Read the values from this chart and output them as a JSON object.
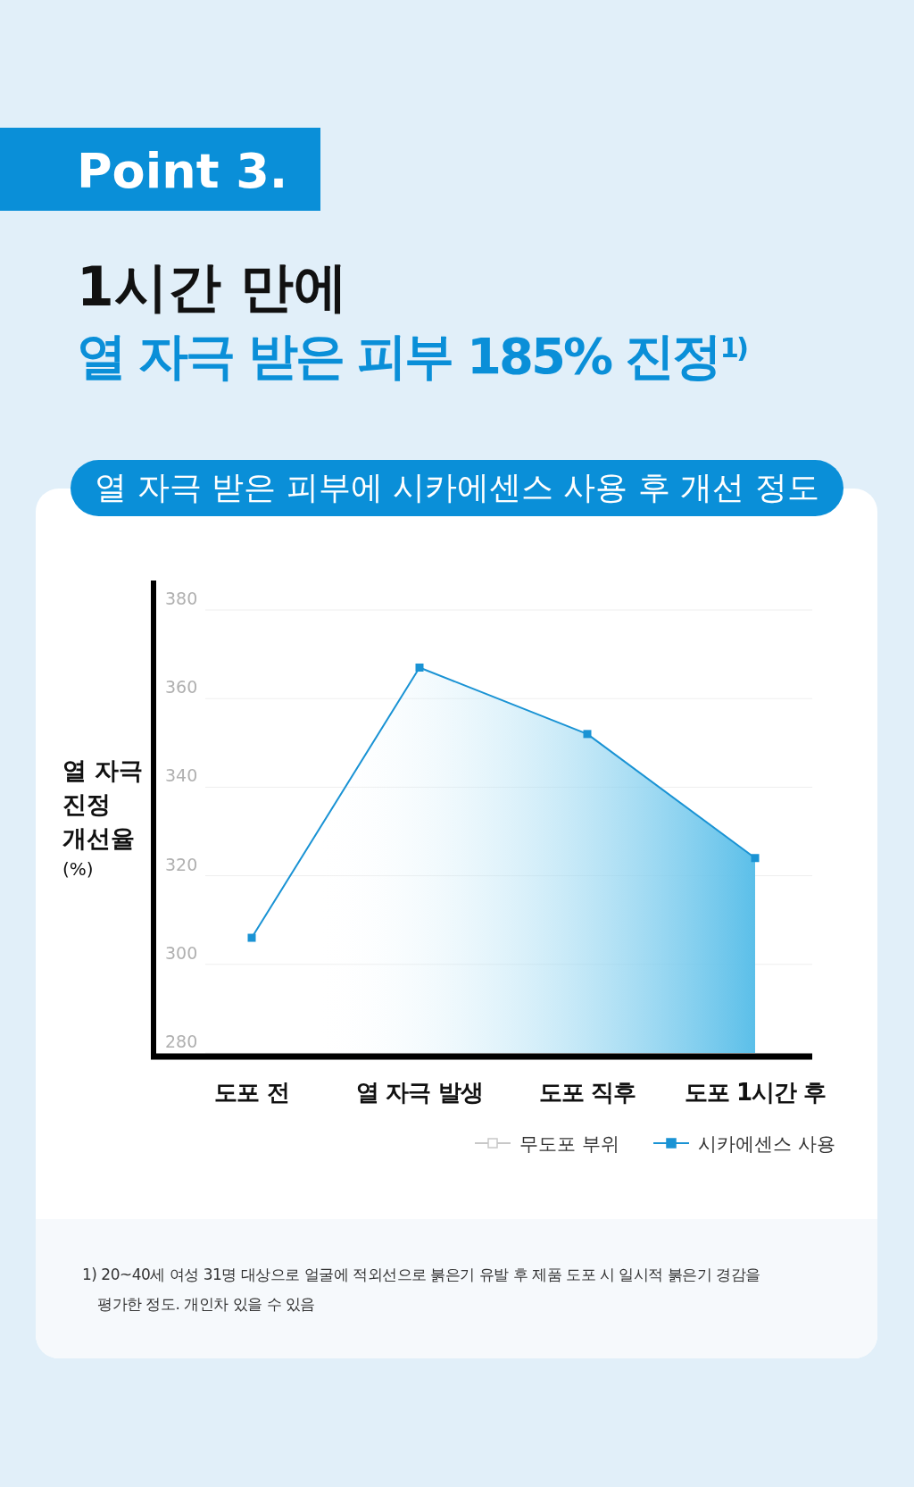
{
  "chart_data": {
    "type": "area",
    "title": "1시간 만에",
    "subtitle": "열 자극 받은 피부 185% 진정$^{1)}$",
    "annotations": [
      "Point 3.",
      "열 자극 받은 피부에 시카에센스 사용 후 개선 정도",
      "1) 20~40세 여성 31명 대상으로 얼굴에 적외선으로 붉은기 유발 후 제품 도포 시 일시적 붉은기 경감을\n평가한 정도. 개인차 있을 수 있음"
    ],
    "ylabel": "열 자극\n진정\n개선율\n(%)",
    "categories": [
      "도포 전",
      "열 자극 발생",
      "도포 직후",
      "도포 1시간 후"
    ],
    "series": [
      {
        "name": "무도포 부위",
        "color": "#c8c8c8",
        "values": [
          null,
          null,
          null,
          null
        ]
      },
      {
        "name": "시카에센스 사용",
        "color": "#1a93d4",
        "values": [
          306,
          367,
          352,
          324
        ]
      }
    ],
    "ylim": [
      280,
      380
    ],
    "yticks": [
      280,
      300,
      320,
      340,
      360,
      380
    ],
    "grid": "y",
    "legend": "bottom right",
    "marker": "square"
  }
}
